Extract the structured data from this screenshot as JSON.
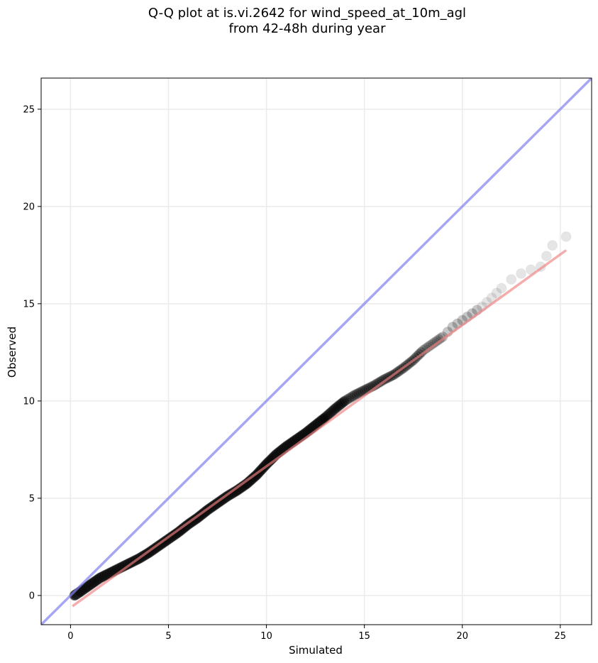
{
  "chart_data": {
    "type": "scatter",
    "title_line1": "Q-Q plot at is.vi.2642 for wind_speed_at_10m_agl",
    "title_line2": "from 42-48h during year",
    "xlabel": "Simulated",
    "ylabel": "Observed",
    "xlim": [
      -1.5,
      26.6
    ],
    "ylim": [
      -1.5,
      26.6
    ],
    "xticks": [
      0,
      5,
      10,
      15,
      20,
      25
    ],
    "yticks": [
      0,
      5,
      10,
      15,
      20,
      25
    ],
    "grid": true,
    "reference_line": {
      "slope": 1,
      "intercept": 0,
      "color": "#8080f0"
    },
    "fit_line": {
      "x": [
        0.1,
        25.3
      ],
      "y": [
        -0.55,
        17.75
      ],
      "color": "#f08080"
    },
    "quantiles": {
      "x": [
        0.2,
        0.5,
        1.0,
        1.5,
        2.0,
        2.5,
        3.0,
        3.5,
        4.0,
        4.5,
        5.0,
        5.5,
        6.0,
        6.5,
        7.0,
        7.5,
        8.0,
        8.5,
        9.0,
        9.5,
        10.0,
        10.5,
        11.0,
        11.5,
        12.0,
        12.5,
        13.0,
        13.5,
        14.0,
        14.5,
        15.0,
        15.5,
        16.0,
        16.5,
        17.0,
        17.5,
        18.0,
        18.5,
        19.0,
        19.5,
        20.0,
        20.5,
        21.0,
        21.5,
        22.0,
        22.5,
        23.0,
        23.5,
        24.0,
        24.3,
        24.6,
        25.3
      ],
      "y": [
        0.0,
        0.2,
        0.55,
        0.9,
        1.15,
        1.4,
        1.65,
        1.9,
        2.2,
        2.55,
        2.9,
        3.25,
        3.65,
        4.0,
        4.4,
        4.75,
        5.1,
        5.4,
        5.75,
        6.2,
        6.75,
        7.25,
        7.65,
        8.0,
        8.35,
        8.75,
        9.15,
        9.6,
        10.0,
        10.3,
        10.55,
        10.8,
        11.1,
        11.35,
        11.7,
        12.1,
        12.6,
        12.95,
        13.3,
        13.8,
        14.15,
        14.5,
        14.85,
        15.3,
        15.8,
        16.25,
        16.55,
        16.75,
        16.9,
        17.45,
        18.0,
        18.45
      ]
    }
  }
}
